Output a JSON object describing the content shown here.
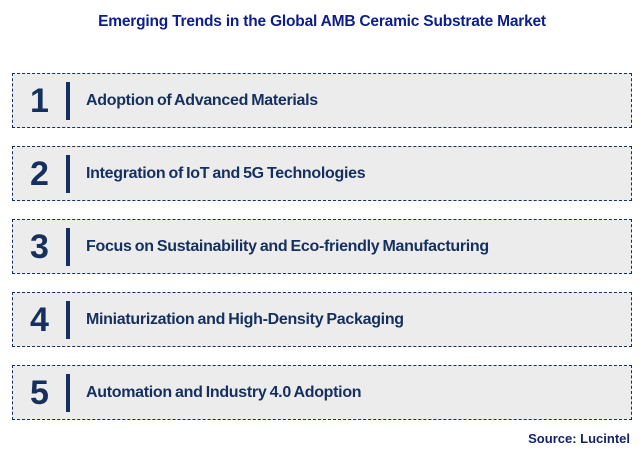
{
  "title": "Emerging Trends in the Global AMB Ceramic Substrate Market",
  "items": [
    {
      "number": "1",
      "label": "Adoption of Advanced Materials"
    },
    {
      "number": "2",
      "label": "Integration of IoT and 5G Technologies"
    },
    {
      "number": "3",
      "label": "Focus on Sustainability and Eco-friendly Manufacturing"
    },
    {
      "number": "4",
      "label": "Miniaturization and High-Density Packaging"
    },
    {
      "number": "5",
      "label": "Automation and Industry 4.0 Adoption"
    }
  ],
  "source": "Source: Lucintel",
  "colors": {
    "title_text": "#0d1e8c",
    "item_text": "#152f5e",
    "item_background": "#ececec",
    "item_border": "#152f5e",
    "source_text": "#14236e",
    "page_background": "#ffffff"
  }
}
